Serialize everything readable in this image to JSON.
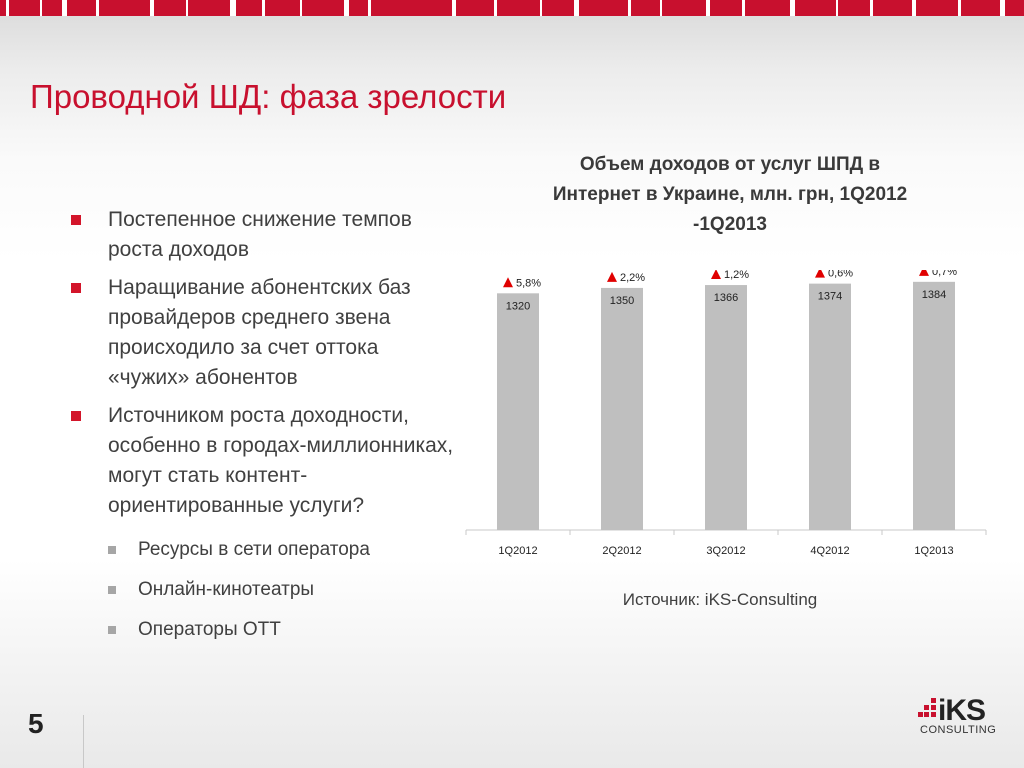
{
  "slide": {
    "title": "Проводной ШД: фаза зрелости",
    "page_number": "5",
    "source": "Источник: iKS-Consulting",
    "bullets": [
      "Постепенное снижение темпов роста  доходов",
      "Наращивание абонентских баз провайдеров среднего звена происходило за счет оттока «чужих» абонентов",
      "Источником роста доходности, особенно в городах-миллионниках, могут стать контент-ориентированные услуги?"
    ],
    "sub_bullets": [
      "Ресурсы в сети оператора",
      "Онлайн-кинотеатры",
      "Операторы ОТТ"
    ],
    "logo": {
      "text": "iKS",
      "sub": "CONSULTING"
    }
  },
  "colors": {
    "accent_red": "#c8102e",
    "bar_gray": "#bfbfbf",
    "triangle_red": "#e00000"
  },
  "chart_data": {
    "type": "bar",
    "title": "Объем доходов от услуг ШПД в Интернет в Украине, млн. грн, 1Q2012 -1Q2013",
    "categories": [
      "1Q2012",
      "2Q2012",
      "3Q2012",
      "4Q2012",
      "1Q2013"
    ],
    "values": [
      1320,
      1350,
      1366,
      1374,
      1384
    ],
    "growth_labels": [
      "5,8%",
      "2,2%",
      "1,2%",
      "0,6%",
      "0,7%"
    ],
    "ylim": [
      0,
      1450
    ],
    "grid": false,
    "legend": "none"
  }
}
